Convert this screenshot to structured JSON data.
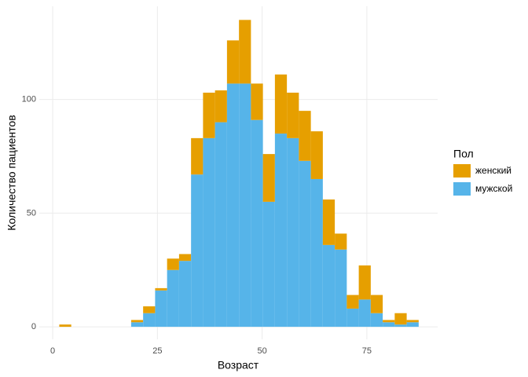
{
  "chart_data": {
    "type": "histogram",
    "x_label": "Возраст",
    "y_label": "Количество пациентов",
    "legend_title": "Пол",
    "legend_position": "right",
    "bins": [
      1.57,
      4.43,
      7.29,
      10.15,
      13.01,
      15.87,
      18.73,
      21.59,
      24.45,
      27.31,
      30.17,
      33.03,
      35.89,
      38.75,
      41.61,
      44.47,
      47.33,
      50.19,
      53.05,
      55.91,
      58.77,
      61.63,
      64.49,
      67.35,
      70.21,
      73.07,
      75.93,
      78.79,
      81.65,
      84.51,
      87.37
    ],
    "stacked": true,
    "series": [
      {
        "name": "женский",
        "color": "#E69F00",
        "values": [
          1,
          0,
          0,
          0,
          0,
          0,
          1,
          3,
          1,
          5,
          3,
          16,
          20,
          14,
          19,
          28,
          16,
          21,
          26,
          20,
          22,
          21,
          20,
          7,
          6,
          15,
          8,
          1,
          5,
          1
        ]
      },
      {
        "name": "мужской",
        "color": "#56B4E9",
        "values": [
          0,
          0,
          0,
          0,
          0,
          0,
          2,
          6,
          16,
          25,
          29,
          67,
          83,
          90,
          107,
          107,
          91,
          55,
          85,
          83,
          73,
          65,
          36,
          34,
          8,
          12,
          6,
          2,
          1,
          2
        ]
      }
    ],
    "xlim": [
      -3.2,
      91.9
    ],
    "ylim": [
      -5.5,
      141
    ],
    "xticks": [
      0,
      25,
      50,
      75
    ],
    "yticks": [
      0,
      50,
      100
    ],
    "grid": true
  }
}
